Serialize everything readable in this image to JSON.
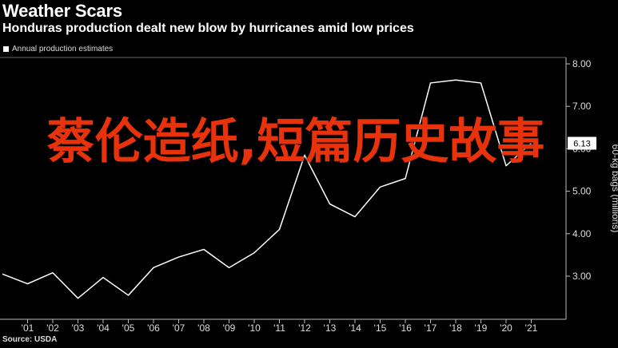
{
  "header": {
    "title": "Weather Scars",
    "subtitle": "Honduras production dealt new blow by hurricanes amid low prices",
    "legend_label": "Annual production estimates",
    "source": "Source: USDA"
  },
  "overlay_text": "蔡伦造纸,短篇历史故事",
  "colors": {
    "background": "#000000",
    "line": "#ffffff",
    "overlay": "#e8320c"
  },
  "chart_data": {
    "type": "line",
    "title": "Honduras production dealt new blow by hurricanes amid low prices",
    "ylabel": "60-kg bags (millions)",
    "ylim": [
      2.3,
      8.1
    ],
    "yticks": [
      "3.00",
      "4.00",
      "5.00",
      "6.00",
      "7.00",
      "8.00"
    ],
    "ytick_values": [
      3,
      4,
      5,
      6,
      7,
      8
    ],
    "xticks": [
      "'01",
      "'02",
      "'03",
      "'04",
      "'05",
      "'06",
      "'07",
      "'08",
      "'09",
      "'10",
      "'11",
      "'12",
      "'13",
      "'14",
      "'15",
      "'16",
      "'17",
      "'18",
      "'19",
      "'20",
      "'21"
    ],
    "x": [
      2000,
      2001,
      2002,
      2003,
      2004,
      2005,
      2006,
      2007,
      2008,
      2009,
      2010,
      2011,
      2012,
      2013,
      2014,
      2015,
      2016,
      2017,
      2018,
      2019,
      2020,
      2021
    ],
    "series": [
      {
        "values": [
          3.05,
          2.82,
          3.08,
          2.48,
          2.97,
          2.55,
          3.2,
          3.45,
          3.63,
          3.2,
          3.55,
          4.1,
          5.85,
          4.7,
          4.4,
          5.1,
          5.3,
          7.55,
          7.62,
          7.55,
          5.6,
          6.13
        ]
      }
    ],
    "last_value_label": "6.13",
    "grid": false
  }
}
